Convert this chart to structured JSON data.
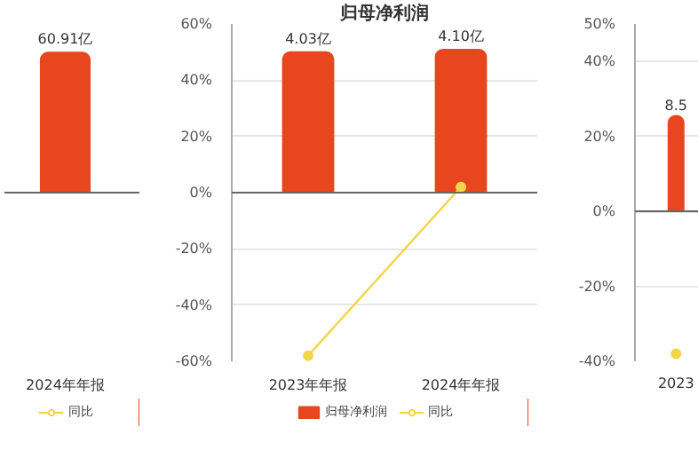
{
  "chart_data": [
    {
      "type": "bar",
      "categories": [
        "2024年年报"
      ],
      "series": [
        {
          "color": "#e8461e",
          "values": [
            60.91
          ],
          "value_labels": [
            "60.91亿"
          ]
        },
        {
          "name": "同比",
          "type": "line",
          "color": "#f2d54b",
          "values": [
            null
          ],
          "marker": "circle"
        }
      ],
      "legend": "bottom",
      "tick_labels": "x"
    },
    {
      "type": "bar",
      "title": "归母净利润",
      "categories": [
        "2023年年报",
        "2024年年报"
      ],
      "series": [
        {
          "name": "归母净利润",
          "color": "#e8461e",
          "axis": "y2",
          "values": [
            4.03,
            4.1
          ],
          "value_labels": [
            "4.03亿",
            "4.10亿"
          ]
        },
        {
          "name": "同比",
          "type": "line",
          "color": "#f2d54b",
          "values": [
            -58,
            2
          ],
          "marker": "circle"
        }
      ],
      "ylim": [
        -60,
        60
      ],
      "yticks": [
        {
          "value": -60,
          "label": "-60%"
        },
        {
          "value": -40,
          "label": "-40%"
        },
        {
          "value": -20,
          "label": "-20%"
        },
        {
          "value": 0,
          "label": "0%"
        },
        {
          "value": 20,
          "label": "20%"
        },
        {
          "value": 40,
          "label": "40%"
        },
        {
          "value": 60,
          "label": "60%"
        }
      ],
      "y2lim": [
        -4.84,
        4.84
      ],
      "grid": "y",
      "legend": "bottom"
    },
    {
      "type": "bar",
      "categories": [
        "2023"
      ],
      "series": [
        {
          "color": "#e8461e",
          "axis": "y2",
          "values": [
            8.5
          ],
          "value_labels": [
            "8.5"
          ]
        },
        {
          "type": "line",
          "color": "#f2d54b",
          "values": [
            -38
          ],
          "marker": "circle"
        }
      ],
      "ylim": [
        -40,
        50
      ],
      "yticks": [
        {
          "value": -40,
          "label": "-40%"
        },
        {
          "value": -20,
          "label": "-20%"
        },
        {
          "value": 0,
          "label": "0%"
        },
        {
          "value": 20,
          "label": "20%"
        },
        {
          "value": 40,
          "label": "40%"
        },
        {
          "value": 50,
          "label": "50%"
        }
      ],
      "grid": "y"
    }
  ]
}
